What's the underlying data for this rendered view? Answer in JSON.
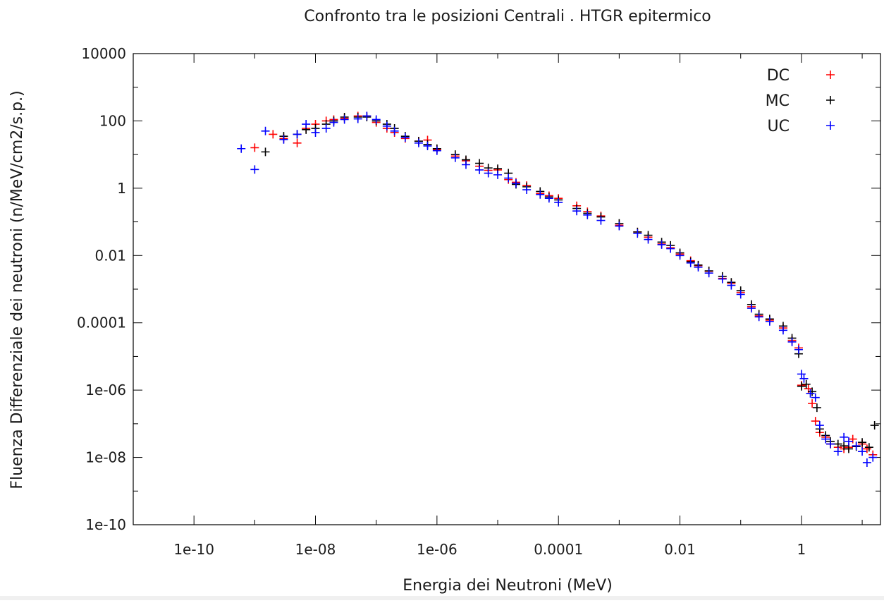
{
  "chart_data": {
    "type": "scatter",
    "title": "Confronto tra le posizioni Centrali . HTGR epitermico",
    "xlabel": "Energia dei Neutroni (MeV)",
    "ylabel": "Fluenza Differenziale dei neutroni (n/MeV/cm2/s.p.)",
    "x_scale": "log",
    "y_scale": "log",
    "xlim": [
      1e-11,
      20
    ],
    "ylim": [
      1e-10,
      10000
    ],
    "x_ticks": [
      {
        "value": 1e-10,
        "label": "1e-10"
      },
      {
        "value": 1e-08,
        "label": "1e-08"
      },
      {
        "value": 1e-06,
        "label": "1e-06"
      },
      {
        "value": 0.0001,
        "label": "0.0001"
      },
      {
        "value": 0.01,
        "label": "0.01"
      },
      {
        "value": 1,
        "label": "1"
      }
    ],
    "y_ticks": [
      {
        "value": 10000,
        "label": "10000"
      },
      {
        "value": 100,
        "label": "100"
      },
      {
        "value": 1,
        "label": "1"
      },
      {
        "value": 0.01,
        "label": "0.01"
      },
      {
        "value": 0.0001,
        "label": "0.0001"
      },
      {
        "value": 1e-06,
        "label": "1e-06"
      },
      {
        "value": 1e-08,
        "label": "1e-08"
      },
      {
        "value": 1e-10,
        "label": "1e-10"
      }
    ],
    "grid": false,
    "legend_position": "top-right",
    "marker": "+",
    "series": [
      {
        "name": "DC",
        "color": "#ff0000",
        "points": [
          [
            1e-09,
            16
          ],
          [
            2e-09,
            40
          ],
          [
            3e-09,
            30
          ],
          [
            5e-09,
            22
          ],
          [
            7e-09,
            60
          ],
          [
            1e-08,
            80
          ],
          [
            1.5e-08,
            100
          ],
          [
            2e-08,
            110
          ],
          [
            3e-08,
            120
          ],
          [
            5e-08,
            140
          ],
          [
            7e-08,
            140
          ],
          [
            1e-07,
            90
          ],
          [
            1.5e-07,
            60
          ],
          [
            2e-07,
            45
          ],
          [
            3e-07,
            30
          ],
          [
            5e-07,
            25
          ],
          [
            7e-07,
            27
          ],
          [
            1e-06,
            14
          ],
          [
            2e-06,
            9
          ],
          [
            3e-06,
            6.5
          ],
          [
            5e-06,
            4.5
          ],
          [
            7e-06,
            3.4
          ],
          [
            1e-05,
            3.5
          ],
          [
            1.5e-05,
            1.8
          ],
          [
            2e-05,
            1.5
          ],
          [
            3e-05,
            1.2
          ],
          [
            5e-05,
            0.7
          ],
          [
            7e-05,
            0.6
          ],
          [
            0.0001,
            0.5
          ],
          [
            0.0002,
            0.3
          ],
          [
            0.0003,
            0.2
          ],
          [
            0.0005,
            0.15
          ],
          [
            0.001,
            0.08
          ],
          [
            0.002,
            0.05
          ],
          [
            0.003,
            0.035
          ],
          [
            0.005,
            0.022
          ],
          [
            0.007,
            0.017
          ],
          [
            0.01,
            0.011
          ],
          [
            0.015,
            0.007
          ],
          [
            0.02,
            0.005
          ],
          [
            0.03,
            0.0034
          ],
          [
            0.05,
            0.0021
          ],
          [
            0.07,
            0.0015
          ],
          [
            0.1,
            0.0008
          ],
          [
            0.15,
            0.0003
          ],
          [
            0.2,
            0.00016
          ],
          [
            0.3,
            0.00012
          ],
          [
            0.5,
            7e-05
          ],
          [
            0.7,
            3e-05
          ],
          [
            0.9,
            1.8e-05
          ],
          [
            1.0,
            1.4e-06
          ],
          [
            1.3,
            1.1e-06
          ],
          [
            1.5,
            4e-07
          ],
          [
            1.7,
            1.2e-07
          ],
          [
            2.0,
            5.5e-08
          ],
          [
            2.5,
            4e-08
          ],
          [
            3.0,
            2.5e-08
          ],
          [
            4.0,
            2e-08
          ],
          [
            5.0,
            1.8e-08
          ],
          [
            6.0,
            2e-08
          ],
          [
            7.0,
            3.5e-08
          ],
          [
            8.0,
            2.2e-08
          ],
          [
            10.0,
            2.5e-08
          ],
          [
            12.0,
            1.8e-08
          ],
          [
            15.0,
            1.2e-08
          ]
        ]
      },
      {
        "name": "MC",
        "color": "#000000",
        "points": [
          [
            1.5e-09,
            12
          ],
          [
            3e-09,
            35
          ],
          [
            5e-09,
            40
          ],
          [
            7e-09,
            55
          ],
          [
            1e-08,
            60
          ],
          [
            1.5e-08,
            80
          ],
          [
            2e-08,
            100
          ],
          [
            3e-08,
            130
          ],
          [
            5e-08,
            130
          ],
          [
            7e-08,
            130
          ],
          [
            1e-07,
            100
          ],
          [
            1.5e-07,
            80
          ],
          [
            2e-07,
            60
          ],
          [
            3e-07,
            35
          ],
          [
            5e-07,
            25
          ],
          [
            7e-07,
            20
          ],
          [
            1e-06,
            15
          ],
          [
            2e-06,
            10
          ],
          [
            3e-06,
            7
          ],
          [
            5e-06,
            5.5
          ],
          [
            7e-06,
            4
          ],
          [
            1e-05,
            3.8
          ],
          [
            1.5e-05,
            2.8
          ],
          [
            2e-05,
            1.3
          ],
          [
            3e-05,
            1.1
          ],
          [
            5e-05,
            0.8
          ],
          [
            7e-05,
            0.55
          ],
          [
            0.0001,
            0.45
          ],
          [
            0.0002,
            0.25
          ],
          [
            0.0003,
            0.18
          ],
          [
            0.0005,
            0.14
          ],
          [
            0.001,
            0.09
          ],
          [
            0.002,
            0.05
          ],
          [
            0.003,
            0.04
          ],
          [
            0.005,
            0.025
          ],
          [
            0.007,
            0.02
          ],
          [
            0.01,
            0.012
          ],
          [
            0.015,
            0.0065
          ],
          [
            0.02,
            0.0052
          ],
          [
            0.03,
            0.0035
          ],
          [
            0.05,
            0.0024
          ],
          [
            0.07,
            0.0016
          ],
          [
            0.1,
            0.0009
          ],
          [
            0.15,
            0.00035
          ],
          [
            0.2,
            0.00018
          ],
          [
            0.3,
            0.00013
          ],
          [
            0.5,
            8e-05
          ],
          [
            0.7,
            3.5e-05
          ],
          [
            0.9,
            1.2e-05
          ],
          [
            1.0,
            1.3e-06
          ],
          [
            1.2,
            1.5e-06
          ],
          [
            1.5,
            9e-07
          ],
          [
            1.8,
            3e-07
          ],
          [
            2.0,
            7e-08
          ],
          [
            2.5,
            4.5e-08
          ],
          [
            3.0,
            3e-08
          ],
          [
            4.0,
            2.5e-08
          ],
          [
            5.0,
            2.2e-08
          ],
          [
            6.0,
            1.8e-08
          ],
          [
            8.0,
            2.1e-08
          ],
          [
            10.0,
            2.8e-08
          ],
          [
            13.0,
            2e-08
          ],
          [
            16.0,
            9e-08
          ]
        ]
      },
      {
        "name": "UC",
        "color": "#0000ff",
        "points": [
          [
            6e-10,
            15
          ],
          [
            1e-09,
            3.6
          ],
          [
            1.5e-09,
            50
          ],
          [
            3e-09,
            28
          ],
          [
            5e-09,
            40
          ],
          [
            7e-09,
            80
          ],
          [
            1e-08,
            45
          ],
          [
            1.5e-08,
            60
          ],
          [
            2e-08,
            90
          ],
          [
            3e-08,
            110
          ],
          [
            5e-08,
            115
          ],
          [
            7e-08,
            140
          ],
          [
            1e-07,
            110
          ],
          [
            1.5e-07,
            70
          ],
          [
            2e-07,
            50
          ],
          [
            3e-07,
            32
          ],
          [
            5e-07,
            22
          ],
          [
            7e-07,
            18
          ],
          [
            1e-06,
            13
          ],
          [
            2e-06,
            8
          ],
          [
            3e-06,
            5
          ],
          [
            5e-06,
            3.5
          ],
          [
            7e-06,
            2.8
          ],
          [
            1e-05,
            2.5
          ],
          [
            1.5e-05,
            2
          ],
          [
            2e-05,
            1.4
          ],
          [
            3e-05,
            0.9
          ],
          [
            5e-05,
            0.65
          ],
          [
            7e-05,
            0.5
          ],
          [
            0.0001,
            0.38
          ],
          [
            0.0002,
            0.21
          ],
          [
            0.0003,
            0.16
          ],
          [
            0.0005,
            0.11
          ],
          [
            0.001,
            0.075
          ],
          [
            0.002,
            0.045
          ],
          [
            0.003,
            0.03
          ],
          [
            0.005,
            0.021
          ],
          [
            0.007,
            0.016
          ],
          [
            0.01,
            0.01
          ],
          [
            0.015,
            0.006
          ],
          [
            0.02,
            0.0045
          ],
          [
            0.03,
            0.003
          ],
          [
            0.05,
            0.002
          ],
          [
            0.07,
            0.0013
          ],
          [
            0.1,
            0.0007
          ],
          [
            0.15,
            0.00027
          ],
          [
            0.2,
            0.00015
          ],
          [
            0.3,
            0.00011
          ],
          [
            0.5,
            6e-05
          ],
          [
            0.7,
            2.7e-05
          ],
          [
            0.9,
            1.6e-05
          ],
          [
            1.0,
            3e-06
          ],
          [
            1.1,
            2.2e-06
          ],
          [
            1.4,
            8e-07
          ],
          [
            1.7,
            6e-07
          ],
          [
            2.0,
            9e-08
          ],
          [
            2.5,
            3.5e-08
          ],
          [
            3.0,
            2.5e-08
          ],
          [
            4.0,
            1.5e-08
          ],
          [
            5.0,
            4e-08
          ],
          [
            6.0,
            3e-08
          ],
          [
            8.0,
            2.2e-08
          ],
          [
            10.0,
            1.5e-08
          ],
          [
            12.0,
            7e-09
          ],
          [
            15.0,
            1e-08
          ]
        ]
      }
    ]
  }
}
